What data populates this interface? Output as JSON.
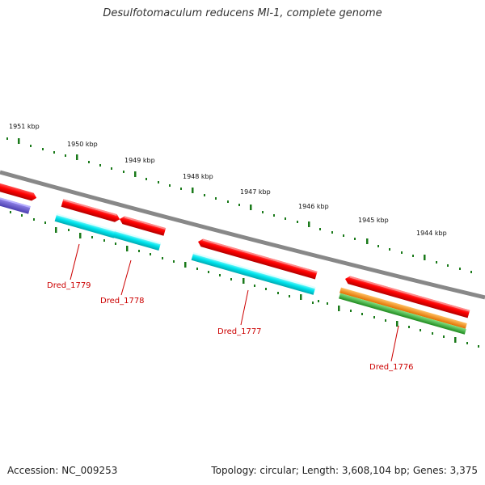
{
  "title": "Desulfotomaculum reducens MI-1, complete genome",
  "scale_labels": [
    "1951 kbp",
    "1950 kbp",
    "1949 kbp",
    "1948 kbp",
    "1947 kbp",
    "1946 kbp",
    "1945 kbp",
    "1944 kbp"
  ],
  "gene_labels": [
    "Dred_1779",
    "Dred_1778",
    "Dred_1777",
    "Dred_1776"
  ],
  "footer": {
    "accession": "Accession: NC_009253",
    "topology": "Topology: circular; Length: 3,608,104 bp; Genes: 3,375"
  },
  "colors": {
    "backbone": "#888888",
    "cds": "#ff0000",
    "gene": "#00e5ee",
    "orange_feature": "#ff8c00",
    "green_feature": "#3cb043",
    "purple_feature": "#6a5acd",
    "tick": "#1a7a1a",
    "label_red": "#cc0000"
  }
}
